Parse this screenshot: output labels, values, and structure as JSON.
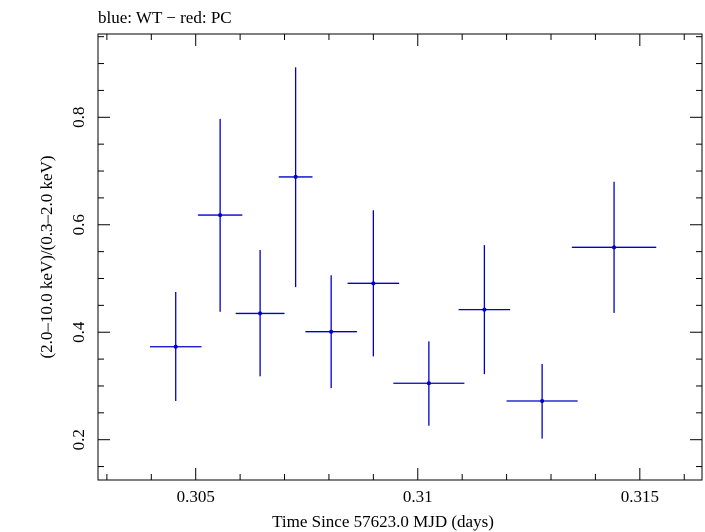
{
  "chart_data": {
    "type": "scatter",
    "title": "blue: WT − red: PC",
    "xlabel": "Time Since 57623.0 MJD (days)",
    "ylabel": "(2.0–10.0 keV)/(0.3–2.0 keV)",
    "xlim": [
      0.3028,
      0.3164
    ],
    "ylim": [
      0.125,
      0.955
    ],
    "xticks": [
      0.305,
      0.31,
      0.315
    ],
    "xtick_labels": [
      "0.305",
      "0.31",
      "0.315"
    ],
    "yticks": [
      0.2,
      0.4,
      0.6,
      0.8
    ],
    "ytick_labels": [
      "0.2",
      "0.4",
      "0.6",
      "0.8"
    ],
    "grid": false,
    "series": [
      {
        "color": "#0000cc",
        "points": [
          {
            "x": 0.30455,
            "y": 0.373,
            "xerr": 0.00058,
            "ylo": 0.272,
            "yhi": 0.475
          },
          {
            "x": 0.30555,
            "y": 0.618,
            "xerr": 0.0005,
            "ylo": 0.438,
            "yhi": 0.797
          },
          {
            "x": 0.30645,
            "y": 0.435,
            "xerr": 0.00055,
            "ylo": 0.318,
            "yhi": 0.553
          },
          {
            "x": 0.30725,
            "y": 0.689,
            "xerr": 0.00038,
            "ylo": 0.484,
            "yhi": 0.893
          },
          {
            "x": 0.30805,
            "y": 0.401,
            "xerr": 0.00058,
            "ylo": 0.296,
            "yhi": 0.506
          },
          {
            "x": 0.309,
            "y": 0.491,
            "xerr": 0.00058,
            "ylo": 0.355,
            "yhi": 0.627
          },
          {
            "x": 0.31025,
            "y": 0.305,
            "xerr": 0.0008,
            "ylo": 0.226,
            "yhi": 0.383
          },
          {
            "x": 0.3115,
            "y": 0.442,
            "xerr": 0.00058,
            "ylo": 0.322,
            "yhi": 0.562
          },
          {
            "x": 0.3128,
            "y": 0.272,
            "xerr": 0.0008,
            "ylo": 0.202,
            "yhi": 0.341
          },
          {
            "x": 0.31442,
            "y": 0.558,
            "xerr": 0.00095,
            "ylo": 0.436,
            "yhi": 0.68
          }
        ]
      }
    ]
  }
}
